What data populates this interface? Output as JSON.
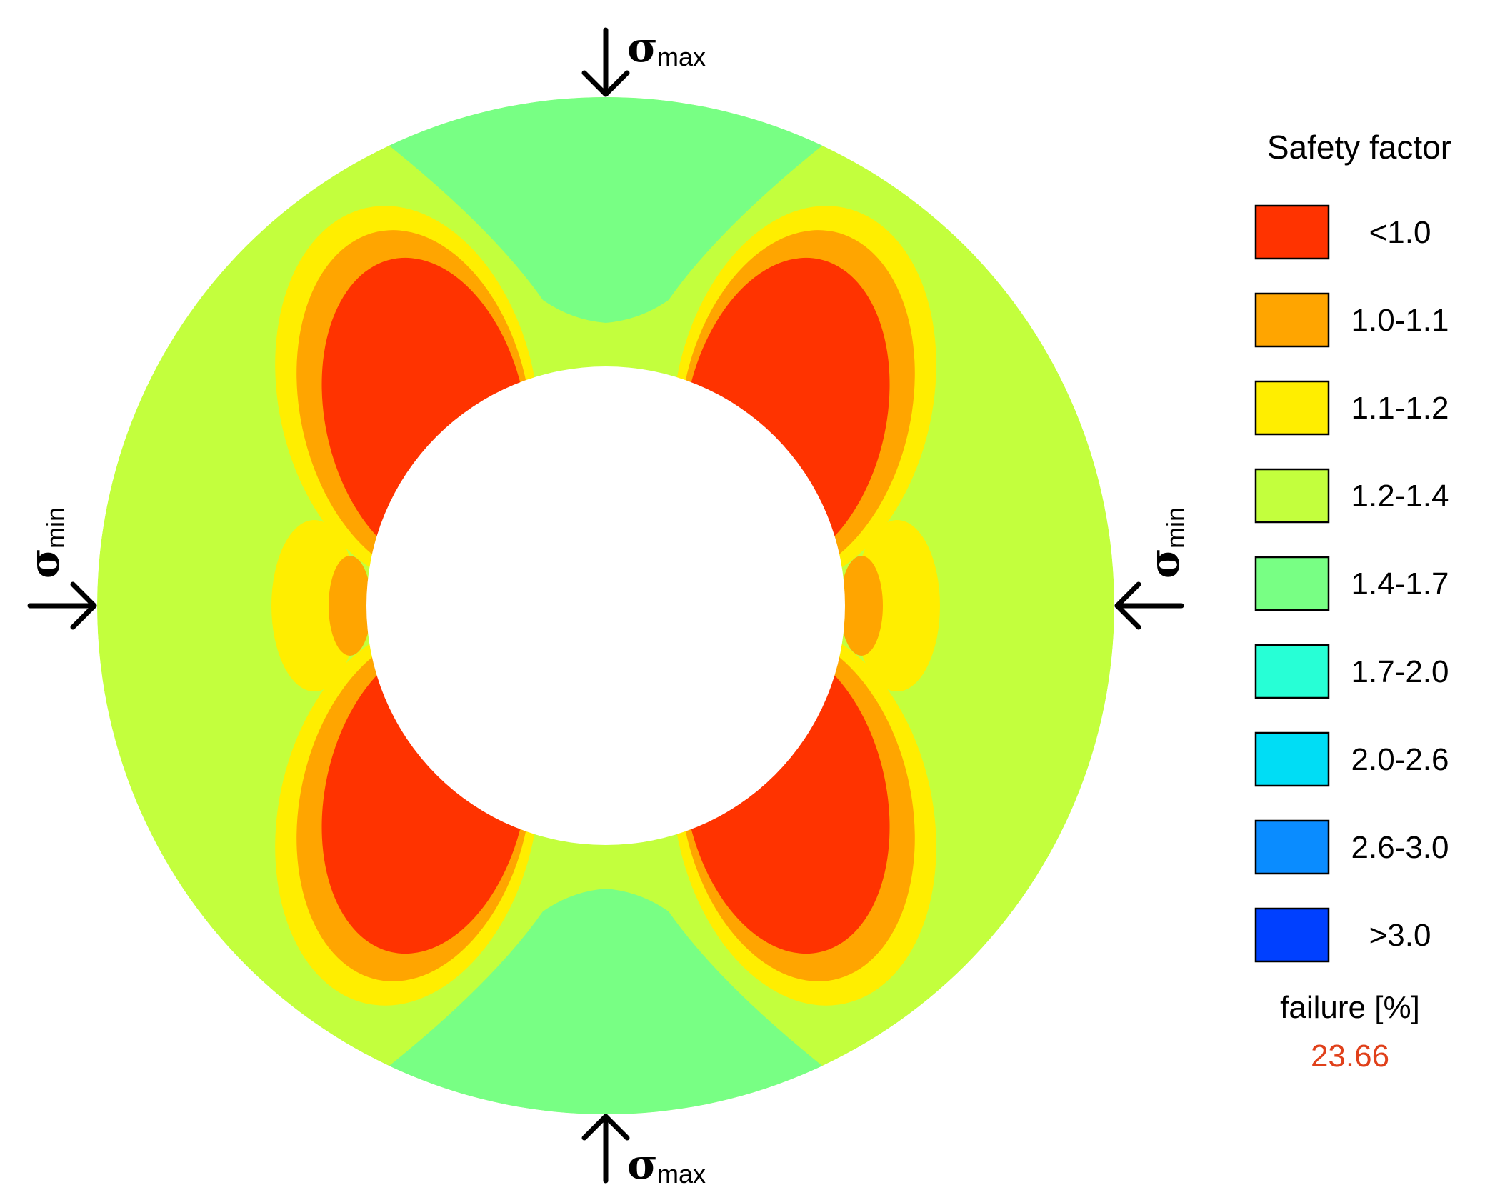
{
  "legend": {
    "title": "Safety factor",
    "items": [
      {
        "label": "<1.0",
        "color": "#ff3300"
      },
      {
        "label": "1.0-1.1",
        "color": "#ffa500"
      },
      {
        "label": "1.1-1.2",
        "color": "#ffee00"
      },
      {
        "label": "1.2-1.4",
        "color": "#c3ff3d"
      },
      {
        "label": "1.4-1.7",
        "color": "#78ff84"
      },
      {
        "label": "1.7-2.0",
        "color": "#27ffd6"
      },
      {
        "label": "2.0-2.6",
        "color": "#00ddf5"
      },
      {
        "label": "2.6-3.0",
        "color": "#0a8cff"
      },
      {
        "label": ">3.0",
        "color": "#0040ff"
      }
    ]
  },
  "failure": {
    "label": "failure [%]",
    "value": "23.66",
    "color": "#e0401a"
  },
  "stress": {
    "symbol": "σ",
    "max_sub": "max",
    "min_sub": "min"
  }
}
